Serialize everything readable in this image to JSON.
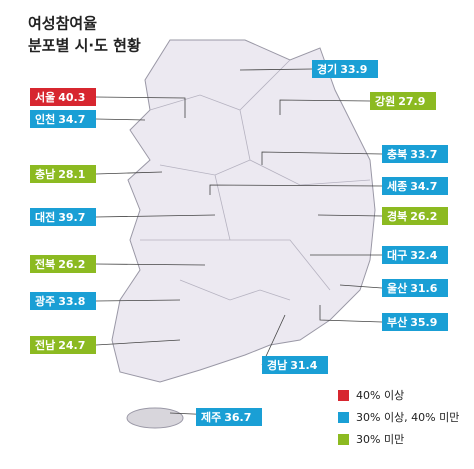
{
  "title": [
    "여성참여율",
    "분포별 시·도 현황"
  ],
  "legend": [
    {
      "label": "40% 이상",
      "color": "#d7262f"
    },
    {
      "label": "30% 이상, 40% 미만",
      "color": "#1a9fd5"
    },
    {
      "label": "30% 미만",
      "color": "#8cba21"
    }
  ],
  "regions": [
    {
      "name": "경기",
      "value": 33.9,
      "category": 1
    },
    {
      "name": "서울",
      "value": 40.3,
      "category": 0
    },
    {
      "name": "인천",
      "value": 34.7,
      "category": 1
    },
    {
      "name": "강원",
      "value": 27.9,
      "category": 2
    },
    {
      "name": "충북",
      "value": 33.7,
      "category": 1
    },
    {
      "name": "충남",
      "value": 28.1,
      "category": 2
    },
    {
      "name": "세종",
      "value": 34.7,
      "category": 1
    },
    {
      "name": "대전",
      "value": 39.7,
      "category": 1
    },
    {
      "name": "경북",
      "value": 26.2,
      "category": 2
    },
    {
      "name": "대구",
      "value": 32.4,
      "category": 1
    },
    {
      "name": "전북",
      "value": 26.2,
      "category": 2
    },
    {
      "name": "울산",
      "value": 31.6,
      "category": 1
    },
    {
      "name": "광주",
      "value": 33.8,
      "category": 1
    },
    {
      "name": "부산",
      "value": 35.9,
      "category": 1
    },
    {
      "name": "전남",
      "value": 24.7,
      "category": 2
    },
    {
      "name": "경남",
      "value": 31.4,
      "category": 1
    },
    {
      "name": "제주",
      "value": 36.7,
      "category": 1
    }
  ]
}
